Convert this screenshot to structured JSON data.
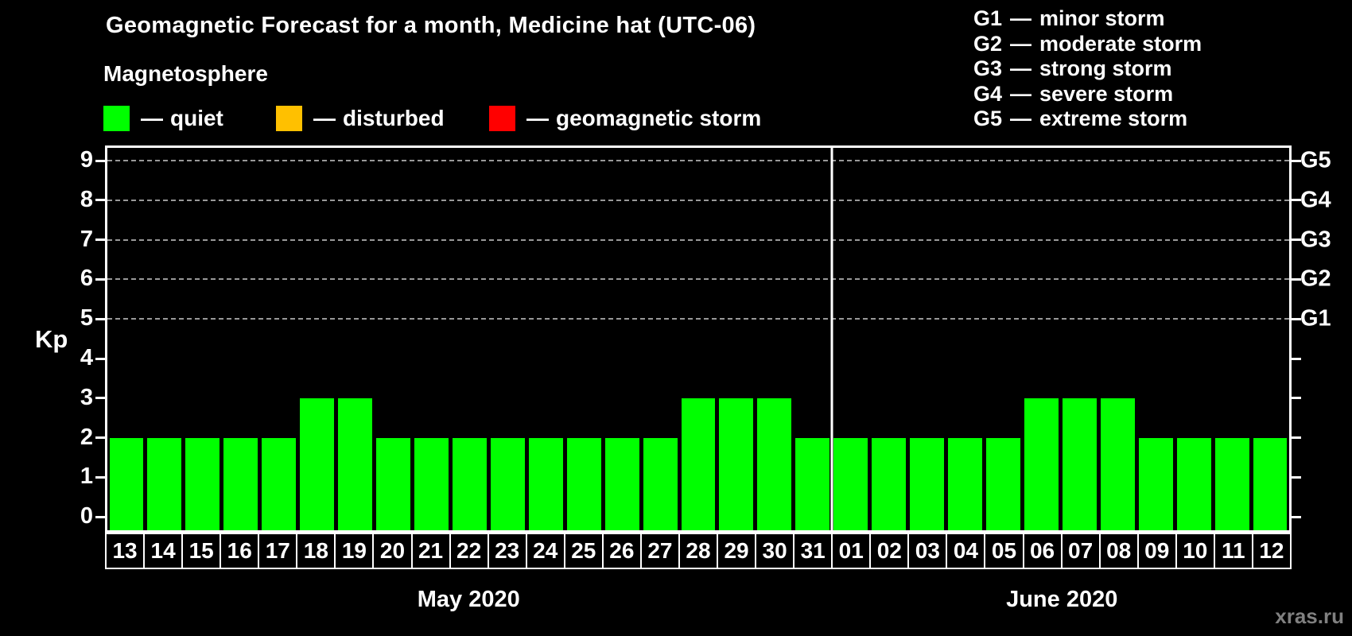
{
  "header": {
    "title": "Geomagnetic Forecast for a month, Medicine hat (UTC-06)",
    "magnetosphere_label": "Magnetosphere"
  },
  "legend": {
    "items": [
      {
        "dash": "—",
        "label": "quiet",
        "color": "#00ff00"
      },
      {
        "dash": "—",
        "label": "disturbed",
        "color": "#ffc000"
      },
      {
        "dash": "—",
        "label": "geomagnetic storm",
        "color": "#ff0000"
      }
    ]
  },
  "g_legend": {
    "items": [
      {
        "code": "G1",
        "dash": "—",
        "desc": "minor storm"
      },
      {
        "code": "G2",
        "dash": "—",
        "desc": "moderate storm"
      },
      {
        "code": "G3",
        "dash": "—",
        "desc": "strong storm"
      },
      {
        "code": "G4",
        "dash": "—",
        "desc": "severe storm"
      },
      {
        "code": "G5",
        "dash": "—",
        "desc": "extreme storm"
      }
    ]
  },
  "axes": {
    "ylabel": "Kp"
  },
  "watermark": "xras.ru",
  "chart_data": {
    "type": "bar",
    "title": "Geomagnetic Forecast for a month, Medicine hat (UTC-06)",
    "ylabel": "Kp",
    "ylim": [
      0,
      9
    ],
    "yticks": [
      0,
      1,
      2,
      3,
      4,
      5,
      6,
      7,
      8,
      9
    ],
    "gridlines_at_kp": [
      5,
      6,
      7,
      8,
      9
    ],
    "right_axis_labels": [
      {
        "kp": 5,
        "label": "G1"
      },
      {
        "kp": 6,
        "label": "G2"
      },
      {
        "kp": 7,
        "label": "G3"
      },
      {
        "kp": 8,
        "label": "G4"
      },
      {
        "kp": 9,
        "label": "G5"
      }
    ],
    "bar_color": "#00ff00",
    "status_colors": {
      "quiet": "#00ff00",
      "disturbed": "#ffc000",
      "storm": "#ff0000"
    },
    "months": [
      {
        "label": "May 2020",
        "days": [
          "13",
          "14",
          "15",
          "16",
          "17",
          "18",
          "19",
          "20",
          "21",
          "22",
          "23",
          "24",
          "25",
          "26",
          "27",
          "28",
          "29",
          "30",
          "31"
        ],
        "values": [
          2,
          2,
          2,
          2,
          2,
          3,
          3,
          2,
          2,
          2,
          2,
          2,
          2,
          2,
          2,
          3,
          3,
          3,
          2
        ]
      },
      {
        "label": "June 2020",
        "days": [
          "01",
          "02",
          "03",
          "04",
          "05",
          "06",
          "07",
          "08",
          "09",
          "10",
          "11",
          "12"
        ],
        "values": [
          2,
          2,
          2,
          2,
          2,
          3,
          3,
          3,
          2,
          2,
          2,
          2
        ]
      }
    ]
  }
}
